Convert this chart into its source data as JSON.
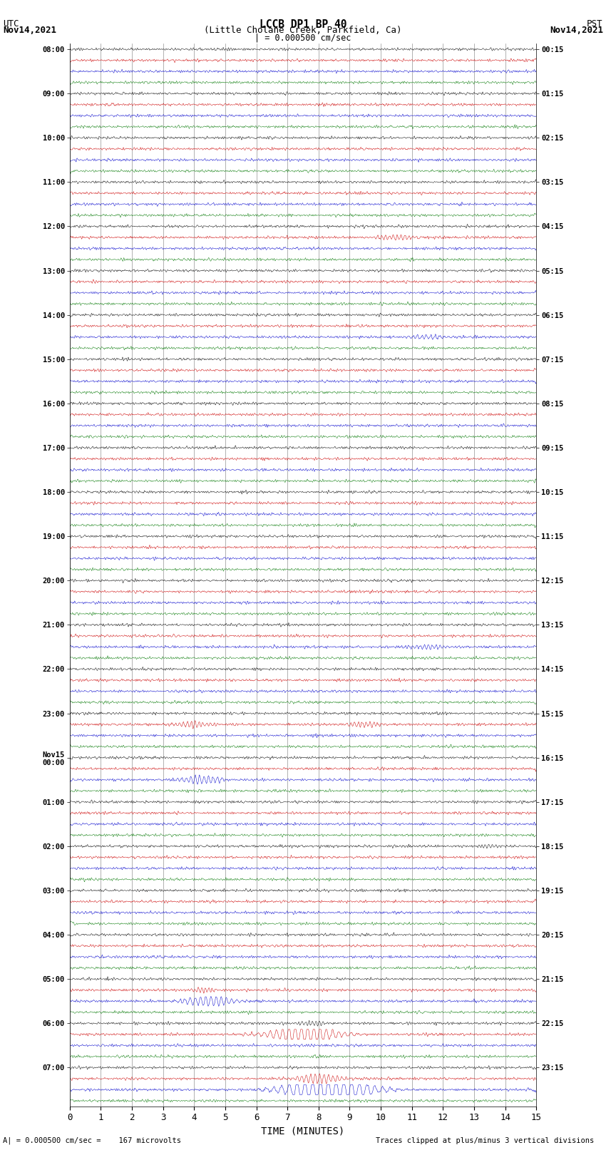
{
  "title_line1": "LCCB DP1 BP 40",
  "title_line2": "(Little Cholane Creek, Parkfield, Ca)",
  "scale_text": "| = 0.000500 cm/sec",
  "utc_label": "UTC",
  "utc_date": "Nov14,2021",
  "pst_label": "PST",
  "pst_date": "Nov14,2021",
  "xlabel": "TIME (MINUTES)",
  "bg_color": "#ffffff",
  "trace_colors": [
    "#000000",
    "#cc0000",
    "#0000cc",
    "#007700"
  ],
  "left_times_utc": [
    "08:00",
    "09:00",
    "10:00",
    "11:00",
    "12:00",
    "13:00",
    "14:00",
    "15:00",
    "16:00",
    "17:00",
    "18:00",
    "19:00",
    "20:00",
    "21:00",
    "22:00",
    "23:00",
    "Nov15\n00:00",
    "01:00",
    "02:00",
    "03:00",
    "04:00",
    "05:00",
    "06:00",
    "07:00"
  ],
  "right_times_pst": [
    "00:15",
    "01:15",
    "02:15",
    "03:15",
    "04:15",
    "05:15",
    "06:15",
    "07:15",
    "08:15",
    "09:15",
    "10:15",
    "11:15",
    "12:15",
    "13:15",
    "14:15",
    "15:15",
    "16:15",
    "17:15",
    "18:15",
    "19:15",
    "20:15",
    "21:15",
    "22:15",
    "23:15"
  ],
  "n_groups": 24,
  "n_colors": 4,
  "minutes": 15,
  "noise_amplitude": 0.35,
  "bottom_note_left": "A| = 0.000500 cm/sec =    167 microvolts",
  "bottom_note_right": "Traces clipped at plus/minus 3 vertical divisions",
  "figsize": [
    8.5,
    16.13
  ],
  "dpi": 100
}
